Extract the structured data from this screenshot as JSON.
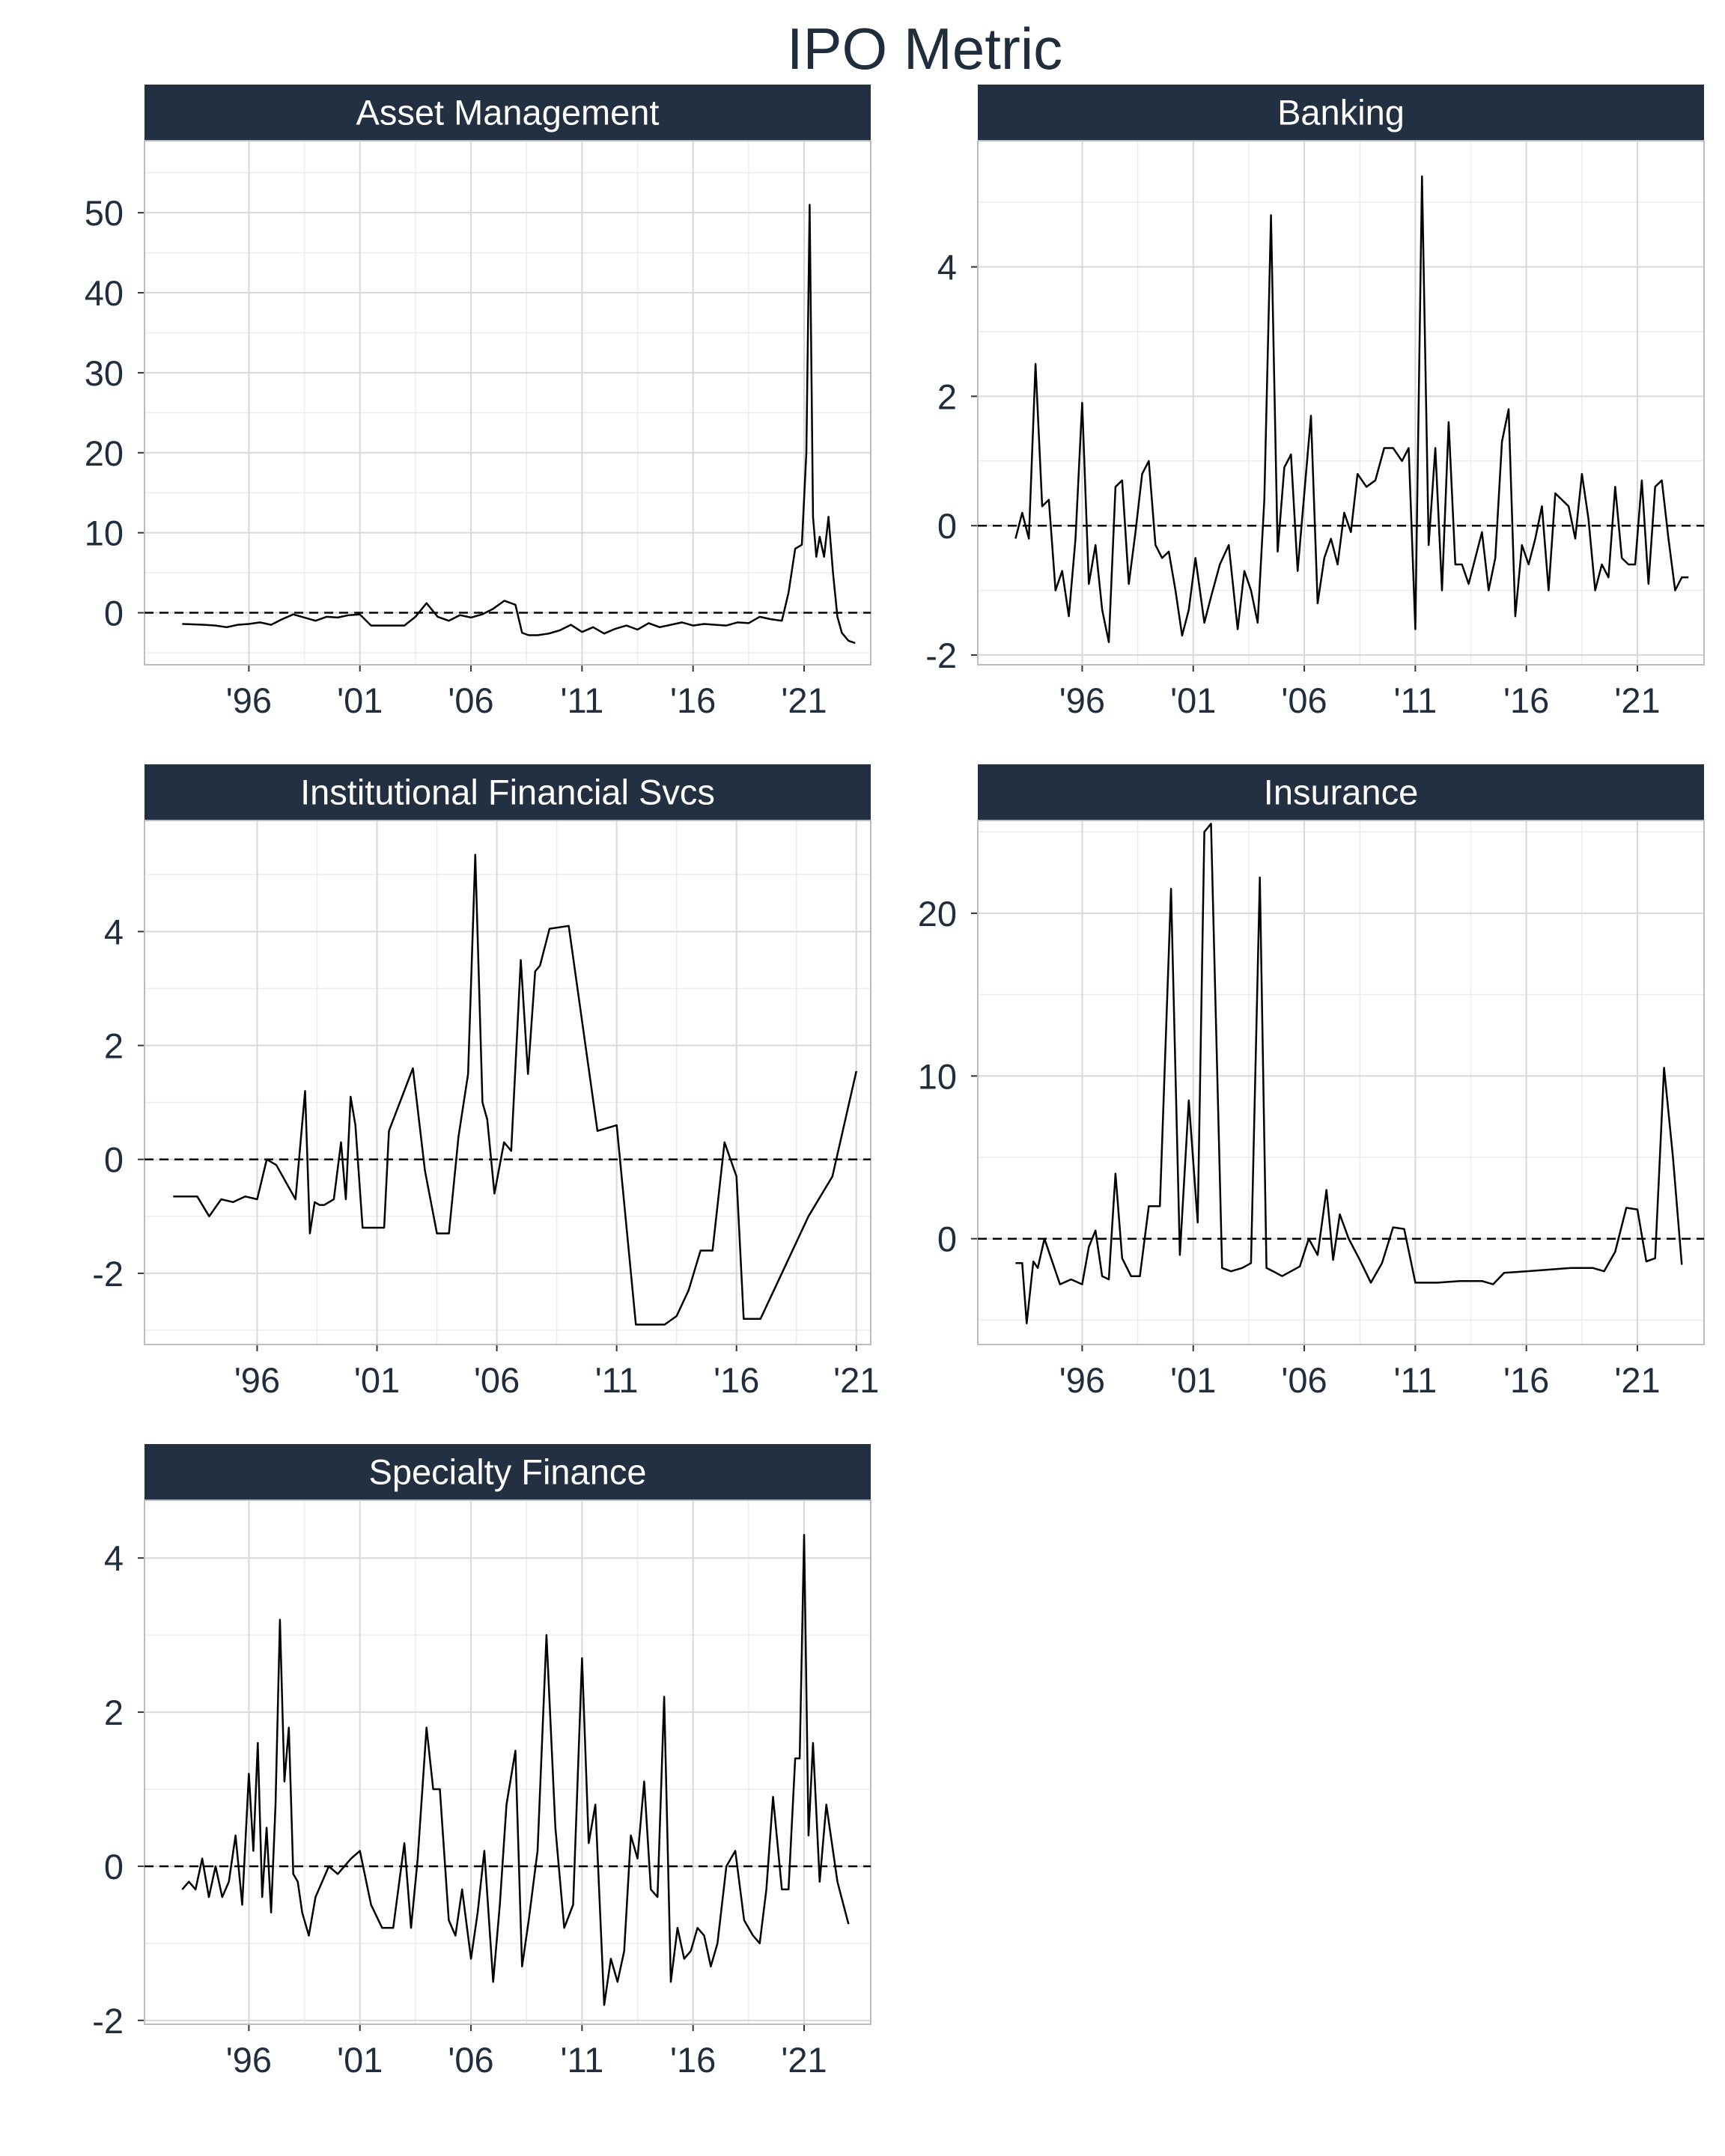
{
  "title": "IPO Metric",
  "colors": {
    "strip": "#223041",
    "text": "#1f2d3d",
    "line": "#000000",
    "grid": "#d9d9d9",
    "frame": "#bdbdbd"
  },
  "chart_data": [
    {
      "type": "line",
      "title": "Asset Management",
      "xlabel": "",
      "ylabel": "",
      "xlim": [
        1991.3,
        2024.0
      ],
      "ylim": [
        -6.5,
        59.0
      ],
      "x_ticks": [
        1996,
        2001,
        2006,
        2011,
        2016,
        2021
      ],
      "x_tick_labels": [
        "'96",
        "'01",
        "'06",
        "'11",
        "'16",
        "'21"
      ],
      "y_ticks": [
        0,
        10,
        20,
        30,
        40,
        50
      ],
      "y_tick_labels": [
        "0",
        "10",
        "20",
        "30",
        "40",
        "50"
      ],
      "reference_line": 0,
      "grid": true,
      "series": [
        {
          "x": [
            1993.0,
            1994.0,
            1994.5,
            1995.0,
            1995.5,
            1996.0,
            1996.5,
            1997.0,
            1997.5,
            1998.0,
            1998.5,
            1999.0,
            1999.5,
            2000.0,
            2000.5,
            2001.0,
            2001.5,
            2002.0,
            2002.5,
            2003.0,
            2003.5,
            2004.0,
            2004.5,
            2005.0,
            2005.5,
            2006.0,
            2006.5,
            2007.0,
            2007.5,
            2008.0,
            2008.3,
            2008.6,
            2009.0,
            2009.5,
            2010.0,
            2010.5,
            2011.0,
            2011.5,
            2012.0,
            2012.5,
            2013.0,
            2013.5,
            2014.0,
            2014.5,
            2015.0,
            2015.5,
            2016.0,
            2016.5,
            2017.0,
            2017.5,
            2018.0,
            2018.5,
            2019.0,
            2019.5,
            2020.0,
            2020.3,
            2020.6,
            2020.9,
            2021.1,
            2021.25,
            2021.4,
            2021.55,
            2021.7,
            2021.9,
            2022.1,
            2022.3,
            2022.5,
            2022.7,
            2023.0,
            2023.3
          ],
          "y": [
            -1.4,
            -1.5,
            -1.6,
            -1.8,
            -1.5,
            -1.4,
            -1.2,
            -1.5,
            -0.8,
            -0.2,
            -0.6,
            -1.0,
            -0.5,
            -0.6,
            -0.3,
            -0.2,
            -1.6,
            -1.6,
            -1.6,
            -1.6,
            -0.5,
            1.2,
            -0.5,
            -1.0,
            -0.3,
            -0.6,
            -0.2,
            0.5,
            1.5,
            1.0,
            -2.5,
            -2.8,
            -2.8,
            -2.6,
            -2.2,
            -1.5,
            -2.4,
            -1.8,
            -2.6,
            -2.0,
            -1.6,
            -2.1,
            -1.3,
            -1.8,
            -1.5,
            -1.2,
            -1.6,
            -1.4,
            -1.5,
            -1.6,
            -1.2,
            -1.3,
            -0.5,
            -0.8,
            -1.0,
            2.5,
            8.0,
            8.5,
            20.0,
            51.0,
            12.0,
            7.0,
            9.5,
            7.0,
            12.0,
            5.0,
            -0.5,
            -2.5,
            -3.5,
            -3.8
          ]
        }
      ]
    },
    {
      "type": "line",
      "title": "Banking",
      "xlabel": "",
      "ylabel": "",
      "xlim": [
        1991.3,
        2024.0
      ],
      "ylim": [
        -2.15,
        5.95
      ],
      "x_ticks": [
        1996,
        2001,
        2006,
        2011,
        2016,
        2021
      ],
      "x_tick_labels": [
        "'96",
        "'01",
        "'06",
        "'11",
        "'16",
        "'21"
      ],
      "y_ticks": [
        -2,
        0,
        2,
        4
      ],
      "y_tick_labels": [
        "-2",
        "0",
        "2",
        "4"
      ],
      "reference_line": 0,
      "grid": true,
      "series": [
        {
          "x": [
            1993.0,
            1993.3,
            1993.6,
            1993.9,
            1994.2,
            1994.5,
            1994.8,
            1995.1,
            1995.4,
            1995.7,
            1996.0,
            1996.3,
            1996.6,
            1996.9,
            1997.2,
            1997.5,
            1997.8,
            1998.1,
            1998.4,
            1998.7,
            1999.0,
            1999.3,
            1999.6,
            1999.9,
            2000.2,
            2000.5,
            2000.8,
            2001.1,
            2001.5,
            2001.8,
            2002.2,
            2002.6,
            2003.0,
            2003.3,
            2003.6,
            2003.9,
            2004.2,
            2004.5,
            2004.8,
            2005.1,
            2005.4,
            2005.7,
            2006.0,
            2006.3,
            2006.6,
            2006.9,
            2007.2,
            2007.5,
            2007.8,
            2008.1,
            2008.4,
            2008.8,
            2009.2,
            2009.6,
            2010.0,
            2010.4,
            2010.7,
            2011.0,
            2011.3,
            2011.6,
            2011.9,
            2012.2,
            2012.5,
            2012.8,
            2013.1,
            2013.4,
            2013.7,
            2014.0,
            2014.3,
            2014.6,
            2014.9,
            2015.2,
            2015.5,
            2015.8,
            2016.1,
            2016.4,
            2016.7,
            2017.0,
            2017.3,
            2017.6,
            2017.9,
            2018.2,
            2018.5,
            2018.8,
            2019.1,
            2019.4,
            2019.7,
            2020.0,
            2020.3,
            2020.6,
            2020.9,
            2021.2,
            2021.5,
            2021.8,
            2022.1,
            2022.4,
            2022.7,
            2023.0,
            2023.3
          ],
          "y": [
            -0.2,
            0.2,
            -0.2,
            2.5,
            0.3,
            0.4,
            -1.0,
            -0.7,
            -1.4,
            -0.2,
            1.9,
            -0.9,
            -0.3,
            -1.3,
            -1.8,
            0.6,
            0.7,
            -0.9,
            -0.1,
            0.8,
            1.0,
            -0.3,
            -0.5,
            -0.4,
            -1.0,
            -1.7,
            -1.3,
            -0.5,
            -1.5,
            -1.1,
            -0.6,
            -0.3,
            -1.6,
            -0.7,
            -1.0,
            -1.5,
            0.4,
            4.8,
            -0.4,
            0.9,
            1.1,
            -0.7,
            0.5,
            1.7,
            -1.2,
            -0.5,
            -0.2,
            -0.6,
            0.2,
            -0.1,
            0.8,
            0.6,
            0.7,
            1.2,
            1.2,
            1.0,
            1.2,
            -1.6,
            5.4,
            -0.3,
            1.2,
            -1.0,
            1.6,
            -0.6,
            -0.6,
            -0.9,
            -0.5,
            -0.1,
            -1.0,
            -0.5,
            1.3,
            1.8,
            -1.4,
            -0.3,
            -0.6,
            -0.2,
            0.3,
            -1.0,
            0.5,
            0.4,
            0.3,
            -0.2,
            0.8,
            0.1,
            -1.0,
            -0.6,
            -0.8,
            0.6,
            -0.5,
            -0.6,
            -0.6,
            0.7,
            -0.9,
            0.6,
            0.7,
            -0.2,
            -1.0,
            -0.8,
            -0.8
          ]
        }
      ]
    },
    {
      "type": "line",
      "title": "Institutional Financial Svcs",
      "xlabel": "",
      "ylabel": "",
      "xlim": [
        1991.3,
        2021.6
      ],
      "ylim": [
        -3.25,
        5.95
      ],
      "x_ticks": [
        1996,
        2001,
        2006,
        2011,
        2016,
        2021
      ],
      "x_tick_labels": [
        "'96",
        "'01",
        "'06",
        "'11",
        "'16",
        "'21"
      ],
      "y_ticks": [
        -2,
        0,
        2,
        4
      ],
      "y_tick_labels": [
        "-2",
        "0",
        "2",
        "4"
      ],
      "reference_line": 0,
      "grid": true,
      "series": [
        {
          "x": [
            1992.5,
            1993.5,
            1994.0,
            1994.5,
            1995.0,
            1995.5,
            1996.0,
            1996.4,
            1996.8,
            1997.2,
            1997.6,
            1998.0,
            1998.2,
            1998.4,
            1998.6,
            1998.8,
            1999.2,
            1999.5,
            1999.7,
            1999.9,
            2000.1,
            2000.4,
            2001.3,
            2001.5,
            2002.5,
            2003.0,
            2003.5,
            2004.0,
            2004.4,
            2004.8,
            2005.1,
            2005.4,
            2005.6,
            2005.9,
            2006.3,
            2006.6,
            2007.0,
            2007.3,
            2007.6,
            2007.8,
            2008.2,
            2009.0,
            2010.2,
            2011.0,
            2011.8,
            2013.0,
            2013.5,
            2014.0,
            2014.5,
            2015.0,
            2015.5,
            2016.0,
            2016.3,
            2016.6,
            2017.0,
            2018.0,
            2019.0,
            2020.0,
            2021.0
          ],
          "y": [
            -0.65,
            -0.65,
            -1.0,
            -0.7,
            -0.75,
            -0.65,
            -0.7,
            0.0,
            -0.1,
            -0.4,
            -0.7,
            1.2,
            -1.3,
            -0.75,
            -0.8,
            -0.8,
            -0.7,
            0.3,
            -0.7,
            1.1,
            0.6,
            -1.2,
            -1.2,
            0.5,
            1.6,
            -0.2,
            -1.3,
            -1.3,
            0.4,
            1.5,
            5.35,
            1.0,
            0.7,
            -0.6,
            0.3,
            0.15,
            3.5,
            1.5,
            3.3,
            3.4,
            4.05,
            4.1,
            0.5,
            0.6,
            -2.9,
            -2.9,
            -2.75,
            -2.3,
            -1.6,
            -1.6,
            0.3,
            -0.3,
            -2.8,
            -2.8,
            -2.8,
            -1.9,
            -1.0,
            -0.3,
            1.55
          ]
        }
      ]
    },
    {
      "type": "line",
      "title": "Insurance",
      "xlabel": "",
      "ylabel": "",
      "xlim": [
        1991.3,
        2024.0
      ],
      "ylim": [
        -6.5,
        25.7
      ],
      "x_ticks": [
        1996,
        2001,
        2006,
        2011,
        2016,
        2021
      ],
      "x_tick_labels": [
        "'96",
        "'01",
        "'06",
        "'11",
        "'16",
        "'21"
      ],
      "y_ticks": [
        0,
        10,
        20
      ],
      "y_tick_labels": [
        "0",
        "10",
        "20"
      ],
      "reference_line": 0,
      "grid": true,
      "series": [
        {
          "x": [
            1993.0,
            1993.3,
            1993.5,
            1993.8,
            1994.0,
            1994.3,
            1994.6,
            1995.0,
            1995.5,
            1996.0,
            1996.3,
            1996.6,
            1996.9,
            1997.2,
            1997.5,
            1997.8,
            1998.2,
            1998.6,
            1999.0,
            1999.5,
            2000.0,
            2000.4,
            2000.8,
            2001.2,
            2001.5,
            2001.8,
            2002.3,
            2002.7,
            2003.2,
            2003.6,
            2004.0,
            2004.3,
            2004.6,
            2005.0,
            2005.4,
            2005.8,
            2006.2,
            2006.6,
            2007.0,
            2007.3,
            2007.6,
            2008.0,
            2008.5,
            2009.0,
            2009.5,
            2010.0,
            2010.5,
            2011.0,
            2012.0,
            2013.0,
            2014.0,
            2014.5,
            2015.0,
            2016.0,
            2017.0,
            2018.0,
            2019.0,
            2019.5,
            2020.0,
            2020.5,
            2021.0,
            2021.4,
            2021.8,
            2022.2,
            2022.6,
            2023.0
          ],
          "y": [
            -1.5,
            -1.5,
            -5.2,
            -1.4,
            -1.8,
            0.0,
            -1.2,
            -2.8,
            -2.5,
            -2.8,
            -0.5,
            0.5,
            -2.3,
            -2.5,
            4.0,
            -1.2,
            -2.3,
            -2.3,
            2.0,
            2.0,
            21.5,
            -1.0,
            8.5,
            1.0,
            25.0,
            25.5,
            -1.8,
            -2.0,
            -1.8,
            -1.5,
            22.2,
            -1.8,
            -2.0,
            -2.3,
            -2.0,
            -1.7,
            0.0,
            -1.0,
            3.0,
            -1.3,
            1.5,
            0.0,
            -1.3,
            -2.7,
            -1.5,
            0.7,
            0.6,
            -2.7,
            -2.7,
            -2.6,
            -2.6,
            -2.8,
            -2.1,
            -2.0,
            -1.9,
            -1.8,
            -1.8,
            -2.0,
            -0.8,
            1.9,
            1.8,
            -1.4,
            -1.2,
            10.5,
            5.0,
            -1.6
          ]
        }
      ]
    },
    {
      "type": "line",
      "title": "Specialty Finance",
      "xlabel": "",
      "ylabel": "",
      "xlim": [
        1991.3,
        2024.0
      ],
      "ylim": [
        -2.05,
        4.75
      ],
      "x_ticks": [
        1996,
        2001,
        2006,
        2011,
        2016,
        2021
      ],
      "x_tick_labels": [
        "'96",
        "'01",
        "'06",
        "'11",
        "'16",
        "'21"
      ],
      "y_ticks": [
        -2,
        0,
        2,
        4
      ],
      "y_tick_labels": [
        "-2",
        "0",
        "2",
        "4"
      ],
      "reference_line": 0,
      "grid": true,
      "series": [
        {
          "x": [
            1993.0,
            1993.3,
            1993.6,
            1993.9,
            1994.2,
            1994.5,
            1994.8,
            1995.1,
            1995.4,
            1995.7,
            1996.0,
            1996.2,
            1996.4,
            1996.6,
            1996.8,
            1997.0,
            1997.2,
            1997.4,
            1997.6,
            1997.8,
            1998.0,
            1998.2,
            1998.4,
            1998.7,
            1999.0,
            1999.3,
            1999.6,
            2000.0,
            2000.3,
            2000.6,
            2001.0,
            2001.5,
            2002.0,
            2002.5,
            2003.0,
            2003.3,
            2003.6,
            2004.0,
            2004.3,
            2004.6,
            2005.0,
            2005.3,
            2005.6,
            2006.0,
            2006.3,
            2006.6,
            2007.0,
            2007.3,
            2007.6,
            2008.0,
            2008.3,
            2008.6,
            2009.0,
            2009.4,
            2009.8,
            2010.2,
            2010.6,
            2011.0,
            2011.3,
            2011.6,
            2012.0,
            2012.3,
            2012.6,
            2012.9,
            2013.2,
            2013.5,
            2013.8,
            2014.1,
            2014.4,
            2014.7,
            2015.0,
            2015.3,
            2015.6,
            2015.9,
            2016.2,
            2016.5,
            2016.8,
            2017.1,
            2017.5,
            2017.9,
            2018.3,
            2018.7,
            2019.0,
            2019.3,
            2019.6,
            2020.0,
            2020.3,
            2020.6,
            2020.8,
            2021.0,
            2021.2,
            2021.4,
            2021.7,
            2022.0,
            2022.5,
            2023.0
          ],
          "y": [
            -0.3,
            -0.2,
            -0.3,
            0.1,
            -0.4,
            0.0,
            -0.4,
            -0.2,
            0.4,
            -0.5,
            1.2,
            0.2,
            1.6,
            -0.4,
            0.5,
            -0.6,
            0.8,
            3.2,
            1.1,
            1.8,
            -0.1,
            -0.2,
            -0.6,
            -0.9,
            -0.4,
            -0.2,
            0.0,
            -0.1,
            0.0,
            0.1,
            0.2,
            -0.5,
            -0.8,
            -0.8,
            0.3,
            -0.8,
            0.1,
            1.8,
            1.0,
            1.0,
            -0.7,
            -0.9,
            -0.3,
            -1.2,
            -0.6,
            0.2,
            -1.5,
            -0.5,
            0.8,
            1.5,
            -1.3,
            -0.7,
            0.2,
            3.0,
            0.5,
            -0.8,
            -0.5,
            2.7,
            0.3,
            0.8,
            -1.8,
            -1.2,
            -1.5,
            -1.1,
            0.4,
            0.1,
            1.1,
            -0.3,
            -0.4,
            2.2,
            -1.5,
            -0.8,
            -1.2,
            -1.1,
            -0.8,
            -0.9,
            -1.3,
            -1.0,
            0.0,
            0.2,
            -0.7,
            -0.9,
            -1.0,
            -0.3,
            0.9,
            -0.3,
            -0.3,
            1.4,
            1.4,
            4.3,
            0.4,
            1.6,
            -0.2,
            0.8,
            -0.2,
            -0.75
          ]
        }
      ]
    }
  ]
}
